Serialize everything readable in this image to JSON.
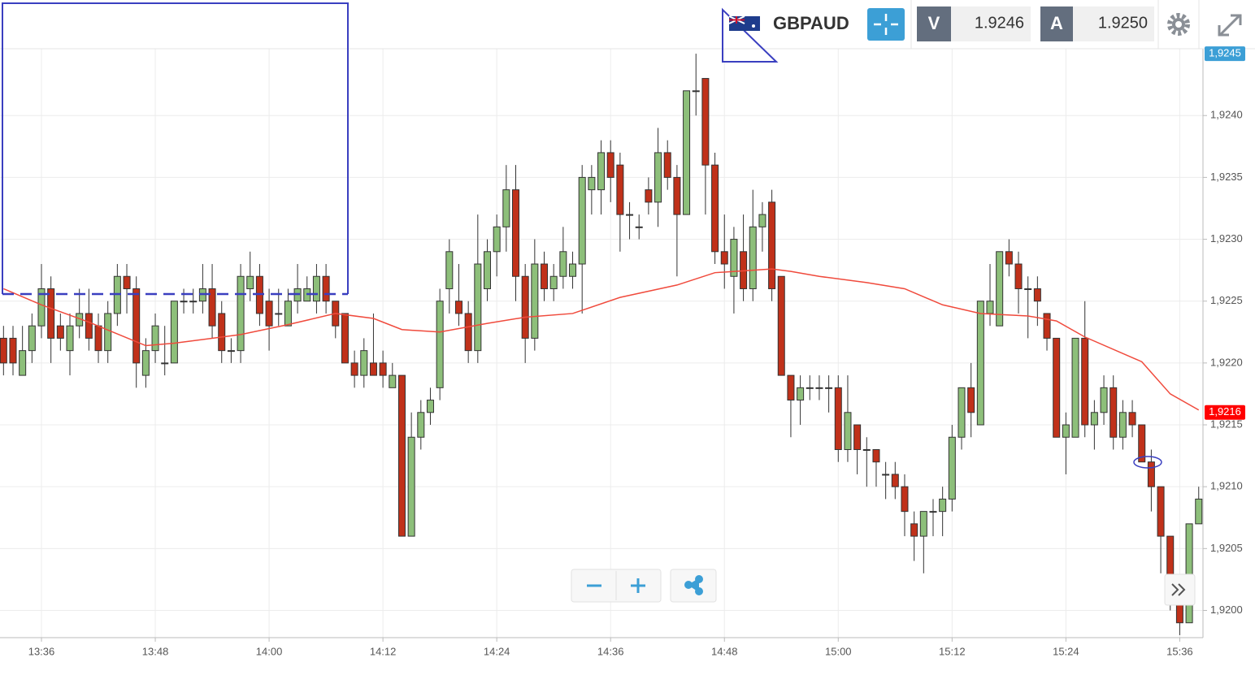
{
  "header": {
    "symbol": "GBPAUD",
    "bid_label": "V",
    "bid": "1.9246",
    "ask_label": "A",
    "ask": "1.9250"
  },
  "chart_data": {
    "type": "candlestick",
    "x": [
      812,
      813,
      814,
      815,
      816,
      817,
      818,
      819,
      820,
      821,
      822,
      823,
      824,
      825,
      826,
      827,
      828,
      829,
      830,
      831,
      832,
      833,
      834,
      835,
      836,
      837,
      838,
      839,
      840,
      841,
      842,
      843,
      844,
      845,
      846,
      847,
      848,
      849,
      850,
      851,
      852,
      853,
      854,
      855,
      856,
      857,
      858,
      859,
      860,
      861,
      862,
      863,
      864,
      865,
      866,
      867,
      868,
      869,
      870,
      871,
      872,
      873,
      874,
      875,
      876,
      877,
      878,
      879,
      880,
      881,
      882,
      883,
      884,
      885,
      886,
      887,
      888,
      889,
      890,
      891,
      892,
      893,
      894,
      895,
      896,
      897,
      898,
      899,
      900,
      901,
      902,
      903,
      904,
      905,
      906,
      907,
      908,
      909,
      910,
      911,
      912,
      913,
      914,
      915,
      916,
      917,
      918,
      919,
      920,
      921,
      922,
      923,
      924,
      925,
      926,
      927,
      928,
      929,
      930,
      931,
      932,
      933,
      934,
      935,
      936,
      937,
      938
    ],
    "open": [
      1.9222,
      1.9222,
      1.9219,
      1.9221,
      1.9223,
      1.9226,
      1.9223,
      1.9221,
      1.9223,
      1.9224,
      1.9223,
      1.9221,
      1.9224,
      1.9227,
      1.9226,
      1.9219,
      1.9221,
      1.922,
      1.922,
      1.9225,
      1.9225,
      1.9225,
      1.9226,
      1.9224,
      1.9221,
      1.9221,
      1.9226,
      1.9227,
      1.9225,
      1.9224,
      1.9223,
      1.9225,
      1.9225,
      1.9225,
      1.9227,
      1.9225,
      1.9224,
      1.922,
      1.9219,
      1.922,
      1.922,
      1.9218,
      1.9219,
      1.9206,
      1.9214,
      1.9216,
      1.9218,
      1.9226,
      1.9225,
      1.9224,
      1.9221,
      1.9226,
      1.9229,
      1.9231,
      1.9234,
      1.9227,
      1.9222,
      1.9228,
      1.9226,
      1.9227,
      1.9227,
      1.9228,
      1.9234,
      1.9234,
      1.9237,
      1.9236,
      1.9232,
      1.9231,
      1.9234,
      1.9233,
      1.9237,
      1.9235,
      1.9232,
      1.9242,
      1.9243,
      1.9236,
      1.9229,
      1.9227,
      1.9229,
      1.9226,
      1.9231,
      1.9233,
      1.9227,
      1.9219,
      1.9217,
      1.9218,
      1.9218,
      1.9218,
      1.9218,
      1.9213,
      1.9215,
      1.9213,
      1.9213,
      1.9211,
      1.9211,
      1.921,
      1.9207,
      1.9206,
      1.9208,
      1.9208,
      1.9209,
      1.9214,
      1.9218,
      1.9215,
      1.9224,
      1.9223,
      1.9229,
      1.9228,
      1.9226,
      1.9226,
      1.9224,
      1.9222,
      1.9214,
      1.9214,
      1.9222,
      1.9215,
      1.9216,
      1.9218,
      1.9214,
      1.9216,
      1.9215,
      1.9212,
      1.921,
      1.9206,
      1.9201,
      1.9199,
      1.9207
    ],
    "high": [
      1.9223,
      1.9223,
      1.9223,
      1.9224,
      1.9228,
      1.9227,
      1.9224,
      1.9224,
      1.9226,
      1.9226,
      1.9224,
      1.9225,
      1.9228,
      1.9228,
      1.9227,
      1.9222,
      1.9224,
      1.9223,
      1.9225,
      1.9226,
      1.9226,
      1.9228,
      1.9228,
      1.9225,
      1.9222,
      1.9228,
      1.9229,
      1.9228,
      1.9226,
      1.9226,
      1.9226,
      1.9228,
      1.9227,
      1.9228,
      1.9228,
      1.9225,
      1.9224,
      1.9221,
      1.9222,
      1.9224,
      1.9221,
      1.922,
      1.9219,
      1.9216,
      1.9217,
      1.9218,
      1.9226,
      1.923,
      1.9228,
      1.9225,
      1.9232,
      1.923,
      1.9232,
      1.9236,
      1.9236,
      1.9228,
      1.923,
      1.9229,
      1.9228,
      1.9231,
      1.9229,
      1.9236,
      1.9236,
      1.9238,
      1.9238,
      1.9237,
      1.9233,
      1.9232,
      1.9235,
      1.9239,
      1.9238,
      1.9236,
      1.9242,
      1.9245,
      1.9243,
      1.9237,
      1.9232,
      1.9231,
      1.9232,
      1.9234,
      1.9233,
      1.9234,
      1.9227,
      1.9219,
      1.9219,
      1.9219,
      1.9219,
      1.9219,
      1.9219,
      1.9219,
      1.9215,
      1.9214,
      1.9213,
      1.9212,
      1.9212,
      1.9211,
      1.9208,
      1.9208,
      1.9209,
      1.921,
      1.9215,
      1.9218,
      1.922,
      1.9225,
      1.9228,
      1.9229,
      1.923,
      1.9229,
      1.9227,
      1.9227,
      1.9224,
      1.9222,
      1.9216,
      1.9222,
      1.9225,
      1.9217,
      1.9219,
      1.9219,
      1.9217,
      1.9217,
      1.9215,
      1.9213,
      1.921,
      1.9206,
      1.9201,
      1.9207,
      1.921
    ],
    "low": [
      1.9219,
      1.9219,
      1.9219,
      1.922,
      1.9222,
      1.922,
      1.9221,
      1.9219,
      1.9222,
      1.9221,
      1.922,
      1.922,
      1.9223,
      1.9224,
      1.9218,
      1.9218,
      1.922,
      1.9219,
      1.922,
      1.9224,
      1.9224,
      1.9224,
      1.9222,
      1.922,
      1.922,
      1.922,
      1.9225,
      1.9223,
      1.9221,
      1.9223,
      1.9223,
      1.9224,
      1.9225,
      1.9224,
      1.9224,
      1.9222,
      1.922,
      1.9218,
      1.9218,
      1.9219,
      1.9218,
      1.9218,
      1.9206,
      1.9206,
      1.9213,
      1.9215,
      1.9217,
      1.9224,
      1.9223,
      1.922,
      1.922,
      1.9225,
      1.9227,
      1.9229,
      1.9225,
      1.922,
      1.9221,
      1.9225,
      1.9225,
      1.9226,
      1.9226,
      1.9224,
      1.9232,
      1.9232,
      1.9233,
      1.9229,
      1.923,
      1.923,
      1.9232,
      1.9231,
      1.9234,
      1.9227,
      1.9232,
      1.924,
      1.9232,
      1.9228,
      1.9226,
      1.9224,
      1.9225,
      1.9225,
      1.9229,
      1.9225,
      1.9219,
      1.9214,
      1.9215,
      1.9217,
      1.9217,
      1.9216,
      1.9212,
      1.9212,
      1.9211,
      1.921,
      1.921,
      1.9209,
      1.9209,
      1.9206,
      1.9204,
      1.9203,
      1.9206,
      1.9206,
      1.9208,
      1.9213,
      1.9214,
      1.9215,
      1.9223,
      1.9223,
      1.9227,
      1.9224,
      1.9222,
      1.9223,
      1.9221,
      1.9214,
      1.9211,
      1.9214,
      1.9214,
      1.9213,
      1.9215,
      1.9213,
      1.9213,
      1.9214,
      1.9212,
      1.9208,
      1.9203,
      1.92,
      1.9198,
      1.9199,
      1.9207
    ],
    "close": [
      1.922,
      1.922,
      1.9221,
      1.9223,
      1.9226,
      1.9222,
      1.9222,
      1.9223,
      1.9224,
      1.9222,
      1.9221,
      1.9224,
      1.9227,
      1.9226,
      1.922,
      1.9221,
      1.9223,
      1.922,
      1.9225,
      1.9225,
      1.9225,
      1.9226,
      1.9223,
      1.9221,
      1.9221,
      1.9227,
      1.9227,
      1.9224,
      1.9223,
      1.9224,
      1.9225,
      1.9226,
      1.9226,
      1.9227,
      1.9225,
      1.9223,
      1.922,
      1.9219,
      1.9221,
      1.9219,
      1.9219,
      1.9219,
      1.9206,
      1.9214,
      1.9216,
      1.9217,
      1.9225,
      1.9229,
      1.9224,
      1.9221,
      1.9228,
      1.9229,
      1.9231,
      1.9234,
      1.9227,
      1.9222,
      1.9228,
      1.9226,
      1.9227,
      1.9229,
      1.9228,
      1.9235,
      1.9235,
      1.9237,
      1.9235,
      1.9232,
      1.9232,
      1.9231,
      1.9233,
      1.9237,
      1.9235,
      1.9232,
      1.9242,
      1.9242,
      1.9236,
      1.9229,
      1.9228,
      1.923,
      1.9226,
      1.9231,
      1.9232,
      1.9226,
      1.9219,
      1.9217,
      1.9218,
      1.9218,
      1.9218,
      1.9218,
      1.9213,
      1.9216,
      1.9213,
      1.9213,
      1.9212,
      1.9211,
      1.921,
      1.9208,
      1.9206,
      1.9208,
      1.9208,
      1.9209,
      1.9214,
      1.9218,
      1.9216,
      1.9225,
      1.9225,
      1.9229,
      1.9228,
      1.9226,
      1.9226,
      1.9225,
      1.9222,
      1.9214,
      1.9215,
      1.9222,
      1.9215,
      1.9216,
      1.9218,
      1.9214,
      1.9216,
      1.9215,
      1.9212,
      1.921,
      1.9206,
      1.9201,
      1.9199,
      1.9207,
      1.9209
    ],
    "up_color": "#8dbf7a",
    "down_color": "#c0311a",
    "ma": {
      "color": "#f04a3c",
      "x": [
        812,
        816,
        821,
        827,
        830,
        837,
        842,
        847,
        851,
        854,
        858,
        863,
        867,
        872,
        877,
        883,
        887,
        893,
        895,
        898,
        903,
        907,
        911,
        915,
        920,
        923,
        926,
        932,
        935,
        938
      ],
      "values": [
        1.9226,
        1.92247,
        1.92233,
        1.92214,
        1.92216,
        1.92223,
        1.92231,
        1.9224,
        1.92236,
        1.92227,
        1.92225,
        1.92232,
        1.92237,
        1.9224,
        1.92253,
        1.92263,
        1.92273,
        1.92276,
        1.92274,
        1.9227,
        1.92265,
        1.9226,
        1.92247,
        1.9224,
        1.92238,
        1.92234,
        1.92221,
        1.92201,
        1.92175,
        1.92162
      ]
    },
    "xlim": [
      811.63,
      938.45
    ],
    "xticks": [
      {
        "value": 816,
        "label": "13:36"
      },
      {
        "value": 828,
        "label": "13:48"
      },
      {
        "value": 840,
        "label": "14:00"
      },
      {
        "value": 852,
        "label": "14:12"
      },
      {
        "value": 864,
        "label": "14:24"
      },
      {
        "value": 876,
        "label": "14:36"
      },
      {
        "value": 888,
        "label": "14:48"
      },
      {
        "value": 900,
        "label": "15:00"
      },
      {
        "value": 912,
        "label": "15:12"
      },
      {
        "value": 924,
        "label": "15:24"
      },
      {
        "value": 936,
        "label": "15:36"
      }
    ],
    "ylim": [
      1.91978,
      1.92454
    ],
    "yticks": [
      {
        "value": 1.92,
        "label": "1,9200"
      },
      {
        "value": 1.9205,
        "label": "1,9205"
      },
      {
        "value": 1.921,
        "label": "1,9210"
      },
      {
        "value": 1.9215,
        "label": "1,9215"
      },
      {
        "value": 1.922,
        "label": "1,9220"
      },
      {
        "value": 1.9225,
        "label": "1,9225"
      },
      {
        "value": 1.923,
        "label": "1,9230"
      },
      {
        "value": 1.9235,
        "label": "1,9235"
      },
      {
        "value": 1.924,
        "label": "1,9240"
      }
    ],
    "price_labels": [
      {
        "value": 1.9245,
        "label": "1,9245",
        "color": "#3c9fd6"
      },
      {
        "value": 1.9216,
        "label": "1,9216",
        "color": "#ff0000"
      }
    ],
    "grid": true
  }
}
